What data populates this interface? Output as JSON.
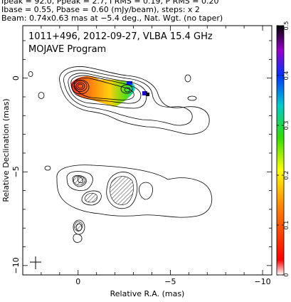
{
  "header": {
    "line1": "Ipeak = 92.0, Ppeak = 2.7, I RMS = 0.19, P RMS = 0.20",
    "line2": "Ibase = 0.55, Pbase = 0.60 (mJy/beam), steps: x 2",
    "line3": "Beam: 0.74x0.63 mas at −5.4 deg., Nat. Wgt. (no taper)"
  },
  "chart_data": {
    "type": "contour",
    "title": "1011+496, 2012-09-27, VLBA 15.4 GHz",
    "subtitle": "MOJAVE Program",
    "xlabel": "Relative R.A. (mas)",
    "ylabel": "Relative Declination (mas)",
    "xlim": [
      3,
      -10.5
    ],
    "ylim": [
      -10.5,
      2.8
    ],
    "xticks": [
      0,
      -5,
      -10
    ],
    "xtick_labels": [
      "0",
      "−5",
      "−10"
    ],
    "yticks": [
      0,
      -5,
      -10
    ],
    "ytick_labels": [
      "0",
      "−5",
      "−10"
    ],
    "colorbar": {
      "range": [
        0,
        0.5
      ],
      "ticks": [
        0,
        0.1,
        0.2,
        0.3,
        0.4,
        0.5
      ],
      "tick_labels": [
        "0",
        "0.1",
        "0.2",
        "0.3",
        "0.4",
        "0.5"
      ]
    },
    "contour_base_mJy": 0.55,
    "contour_step": 2,
    "peak_intensity_mJy": 92.0,
    "core_position": [
      0,
      0
    ],
    "beam": {
      "major": 0.74,
      "minor": 0.63,
      "pa_deg": -5.4
    }
  }
}
